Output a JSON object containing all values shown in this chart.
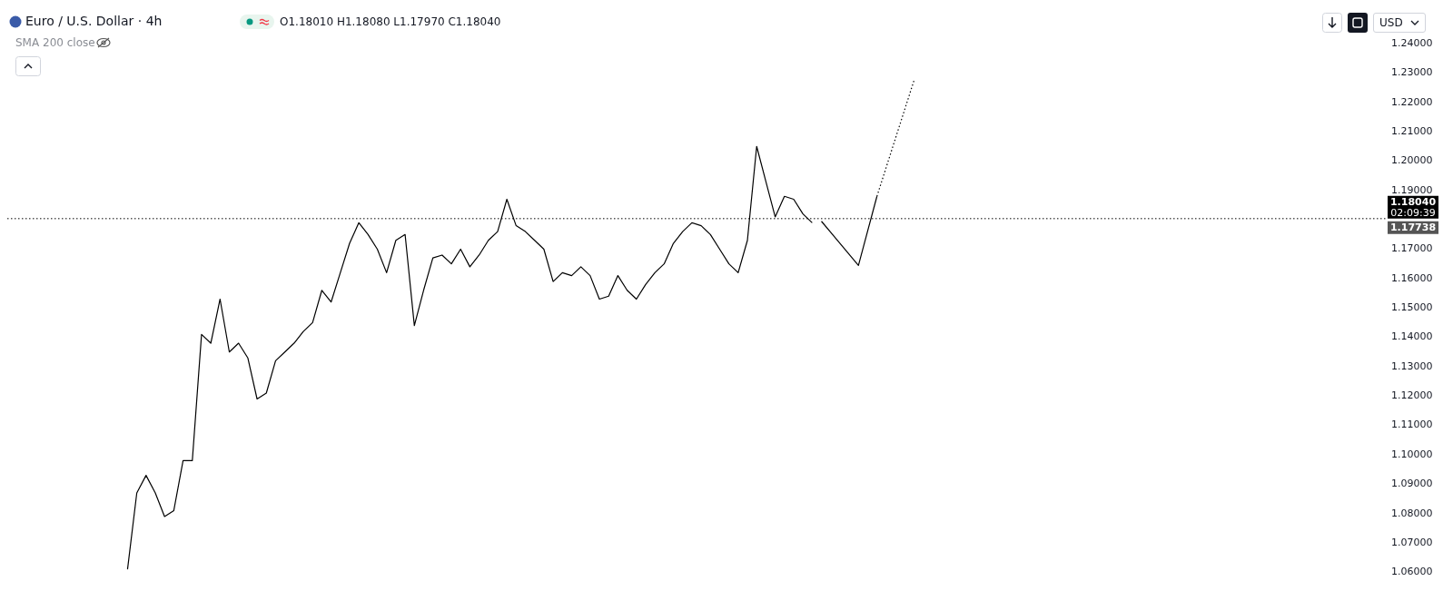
{
  "chart_data": {
    "type": "line",
    "title": "Euro / U.S. Dollar · 4h",
    "annotations": [
      "O1.18010 H1.18080 L1.17970 C1.18040",
      "SMA 200 close",
      "02:09:39",
      "USD",
      "1.17738"
    ],
    "categories": [
      null,
      null,
      null,
      null,
      null,
      null,
      null,
      null,
      null,
      null,
      null,
      null,
      null,
      null,
      null,
      null,
      null,
      null,
      null,
      null,
      null,
      null,
      null,
      null,
      null,
      null,
      null,
      null,
      null,
      null,
      null,
      null,
      null,
      null,
      null,
      null,
      null,
      null,
      null,
      null,
      null,
      null,
      null,
      null,
      null,
      null,
      null,
      null,
      null,
      null,
      null,
      null,
      null,
      null,
      null,
      null,
      null,
      null,
      null,
      null,
      null,
      null,
      null,
      null,
      null,
      null,
      null,
      null,
      null,
      null,
      null,
      null,
      null,
      null,
      null,
      null,
      null,
      null,
      null,
      null,
      null,
      null,
      null,
      null,
      null,
      null,
      null,
      null,
      null,
      null,
      null,
      null,
      null,
      null,
      null,
      null,
      null,
      null,
      null,
      null,
      null,
      null,
      null,
      null,
      null,
      null,
      null,
      null,
      null,
      null,
      null,
      null,
      null,
      null,
      null,
      null,
      null,
      null,
      null,
      null,
      null,
      null,
      null,
      null,
      null,
      null,
      null,
      null,
      null,
      null,
      null,
      null,
      null,
      null,
      null,
      null,
      null,
      null,
      null,
      null,
      null,
      null,
      null,
      null,
      null,
      null,
      null,
      null,
      null,
      null
    ],
    "series": [
      {
        "color": "#000000",
        "line_style": "solid",
        "values": [
          null,
          null,
          null,
          null,
          null,
          null,
          null,
          null,
          null,
          null,
          null,
          null,
          null,
          1.061,
          1.087,
          1.093,
          1.087,
          1.079,
          1.081,
          1.098,
          1.098,
          1.141,
          1.138,
          1.153,
          1.135,
          1.138,
          1.133,
          1.119,
          1.121,
          1.132,
          1.135,
          1.138,
          1.142,
          1.145,
          1.156,
          1.152,
          1.162,
          1.172,
          1.179,
          1.175,
          1.17,
          1.162,
          1.173,
          1.175,
          1.144,
          1.156,
          1.167,
          1.168,
          1.165,
          1.17,
          1.164,
          1.168,
          1.173,
          1.176,
          1.187,
          1.178,
          1.176,
          1.173,
          1.17,
          1.159,
          1.162,
          1.161,
          1.164,
          1.161,
          1.153,
          1.154,
          1.161,
          1.156,
          1.153,
          1.158,
          1.162,
          1.165,
          1.172,
          1.176,
          1.179,
          1.178,
          1.175,
          1.17,
          1.165,
          1.162,
          1.173,
          1.205,
          1.193,
          1.181,
          1.188,
          1.187,
          1.182,
          1.179,
          null,
          null,
          null,
          null,
          null,
          null,
          null,
          null,
          null,
          null,
          null,
          null,
          null,
          null,
          null,
          null,
          null,
          null,
          null,
          null,
          null,
          null,
          null,
          null,
          null,
          null,
          null,
          null,
          null,
          null,
          null,
          null,
          null,
          null,
          null,
          null,
          null,
          null,
          null,
          null,
          null,
          null,
          null,
          null,
          null,
          null,
          null,
          null,
          null,
          null,
          null,
          null,
          null,
          null,
          null,
          null,
          null,
          null,
          null,
          null,
          null,
          null
        ]
      },
      {
        "color": "#000000",
        "line_style": "solid",
        "values": [
          null,
          null,
          null,
          null,
          null,
          null,
          null,
          null,
          null,
          null,
          null,
          null,
          null,
          null,
          null,
          null,
          null,
          null,
          null,
          null,
          null,
          null,
          null,
          null,
          null,
          null,
          null,
          null,
          null,
          null,
          null,
          null,
          null,
          null,
          null,
          null,
          null,
          null,
          null,
          null,
          null,
          null,
          null,
          null,
          null,
          null,
          null,
          null,
          null,
          null,
          null,
          null,
          null,
          null,
          null,
          null,
          null,
          null,
          null,
          null,
          null,
          null,
          null,
          null,
          null,
          null,
          null,
          null,
          null,
          null,
          null,
          null,
          null,
          null,
          null,
          null,
          null,
          null,
          null,
          null,
          null,
          null,
          null,
          null,
          null,
          null,
          null,
          null,
          1.1795,
          null,
          null,
          null,
          1.1645,
          null,
          1.188,
          null,
          null,
          null,
          null,
          null,
          null,
          null,
          null,
          null,
          null,
          null,
          null,
          null,
          null,
          null,
          null,
          null,
          null,
          null,
          null,
          null,
          null,
          null,
          null,
          null,
          null,
          null,
          null,
          null,
          null,
          null,
          null,
          null,
          null,
          null,
          null,
          null,
          null,
          null,
          null,
          null,
          null,
          null,
          null,
          null,
          null,
          null,
          null,
          null,
          null,
          null,
          null,
          null,
          null,
          null
        ]
      },
      {
        "color": "#000000",
        "line_style": "dotted",
        "values": [
          null,
          null,
          null,
          null,
          null,
          null,
          null,
          null,
          null,
          null,
          null,
          null,
          null,
          null,
          null,
          null,
          null,
          null,
          null,
          null,
          null,
          null,
          null,
          null,
          null,
          null,
          null,
          null,
          null,
          null,
          null,
          null,
          null,
          null,
          null,
          null,
          null,
          null,
          null,
          null,
          null,
          null,
          null,
          null,
          null,
          null,
          null,
          null,
          null,
          null,
          null,
          null,
          null,
          null,
          null,
          null,
          null,
          null,
          null,
          null,
          null,
          null,
          null,
          null,
          null,
          null,
          null,
          null,
          null,
          null,
          null,
          null,
          null,
          null,
          null,
          null,
          null,
          null,
          null,
          null,
          null,
          null,
          null,
          null,
          null,
          null,
          null,
          null,
          null,
          null,
          null,
          null,
          null,
          null,
          1.188,
          null,
          null,
          null,
          1.2274,
          null,
          null,
          null,
          null,
          null,
          null,
          null,
          null,
          null,
          null,
          null,
          null,
          null,
          null,
          null,
          null,
          null,
          null,
          null,
          null,
          null,
          null,
          null,
          null,
          null,
          null,
          null,
          null,
          null,
          null,
          null,
          null,
          null,
          null,
          null,
          null,
          null,
          null,
          null,
          null,
          null,
          null,
          null,
          null,
          null,
          null,
          null,
          null,
          null,
          null,
          null
        ]
      }
    ],
    "ylim": [
      1.06,
      1.24
    ],
    "yticks": [
      {
        "value": 1.06,
        "label": "1.06000"
      },
      {
        "value": 1.07,
        "label": "1.07000"
      },
      {
        "value": 1.08,
        "label": "1.08000"
      },
      {
        "value": 1.09,
        "label": "1.09000"
      },
      {
        "value": 1.1,
        "label": "1.10000"
      },
      {
        "value": 1.11,
        "label": "1.11000"
      },
      {
        "value": 1.12,
        "label": "1.12000"
      },
      {
        "value": 1.13,
        "label": "1.13000"
      },
      {
        "value": 1.14,
        "label": "1.14000"
      },
      {
        "value": 1.15,
        "label": "1.15000"
      },
      {
        "value": 1.16,
        "label": "1.16000"
      },
      {
        "value": 1.17,
        "label": "1.17000"
      },
      {
        "value": 1.19,
        "label": "1.19000"
      },
      {
        "value": 1.2,
        "label": "1.20000"
      },
      {
        "value": 1.21,
        "label": "1.21000"
      },
      {
        "value": 1.22,
        "label": "1.22000"
      },
      {
        "value": 1.23,
        "label": "1.23000"
      },
      {
        "value": 1.24,
        "label": "1.24000"
      }
    ],
    "ref_lines": [
      {
        "axis": "y",
        "value": 1.1804,
        "label": "1.18040",
        "color": "#000000",
        "line_style": "dotted"
      }
    ],
    "tick_labels": "y",
    "grid": false,
    "legend": false,
    "marker": "none"
  }
}
